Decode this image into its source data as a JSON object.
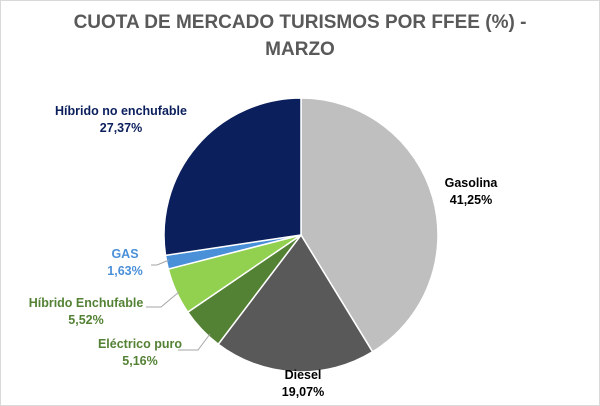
{
  "chart_data": {
    "type": "pie",
    "title_line1": "CUOTA DE MERCADO TURISMOS POR FFEE (%) -",
    "title_line2": "MARZO",
    "series": [
      {
        "name": "Gasolina",
        "value": 41.25,
        "label": "41,25%",
        "color": "#bfbfbf",
        "label_color": "#000000"
      },
      {
        "name": "Diesel",
        "value": 19.07,
        "label": "19,07%",
        "color": "#595959",
        "label_color": "#000000"
      },
      {
        "name": "Eléctrico puro",
        "value": 5.16,
        "label": "5,16%",
        "color": "#548235",
        "label_color": "#548235"
      },
      {
        "name": "Híbrido Enchufable",
        "value": 5.52,
        "label": "5,52%",
        "color": "#92d050",
        "label_color": "#548235"
      },
      {
        "name": "GAS",
        "value": 1.63,
        "label": "1,63%",
        "color": "#4a90d9",
        "label_color": "#4a90d9"
      },
      {
        "name": "Híbrido no enchufable",
        "value": 27.37,
        "label": "27,37%",
        "color": "#0b1f5c",
        "label_color": "#0b1f5c"
      }
    ],
    "legend": "none"
  }
}
